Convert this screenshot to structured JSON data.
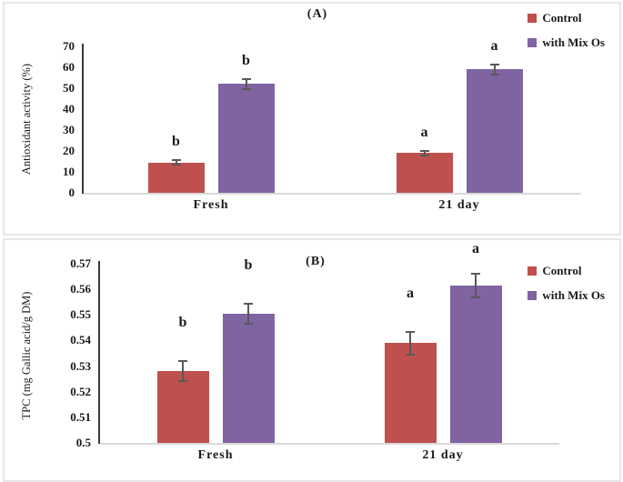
{
  "figure": {
    "error_bar_color": "#595959",
    "axis_line_color": "#3a3a3a",
    "baseline_color": "#d9d9d9"
  },
  "chart_data": [
    {
      "type": "bar",
      "title": "(A)",
      "ylabel": "Antioxidant activity (%)",
      "xlabel": "",
      "ylim": [
        0,
        70
      ],
      "grid": false,
      "legend_position": "top-right",
      "ytick_values": [
        0,
        10,
        20,
        30,
        40,
        50,
        60,
        70
      ],
      "ytick_labels": [
        "0",
        "10",
        "20",
        "30",
        "40",
        "50",
        "60",
        "70"
      ],
      "categories": [
        "Fresh",
        "21 day"
      ],
      "series": [
        {
          "name": "Control",
          "color": "#c0504d",
          "values": [
            14.5,
            19
          ],
          "errors": [
            1.2,
            1.2
          ],
          "letters": [
            "b",
            "a"
          ]
        },
        {
          "name": "with Mix Os",
          "color": "#8064a2",
          "values": [
            52,
            59
          ],
          "errors": [
            2.5,
            2.5
          ],
          "letters": [
            "b",
            "a"
          ]
        }
      ]
    },
    {
      "type": "bar",
      "title": "(B)",
      "ylabel": "TPC (mg Gallic acid/g DM)",
      "xlabel": "",
      "ylim": [
        0.5,
        0.57
      ],
      "grid": false,
      "legend_position": "top-right",
      "ytick_values": [
        0.5,
        0.51,
        0.52,
        0.53,
        0.54,
        0.55,
        0.56,
        0.57
      ],
      "ytick_labels": [
        "0.5",
        "0.51",
        "0.52",
        "0.53",
        "0.54",
        "0.55",
        "0.56",
        "0.57"
      ],
      "categories": [
        "Fresh",
        "21 day"
      ],
      "series": [
        {
          "name": "Control",
          "color": "#c0504d",
          "values": [
            0.528,
            0.539
          ],
          "errors": [
            0.004,
            0.0045
          ],
          "letters": [
            "b",
            "a"
          ]
        },
        {
          "name": "with Mix Os",
          "color": "#8064a2",
          "values": [
            0.5505,
            0.5615
          ],
          "errors": [
            0.004,
            0.0045
          ],
          "letters": [
            "b",
            "a"
          ]
        }
      ]
    }
  ]
}
